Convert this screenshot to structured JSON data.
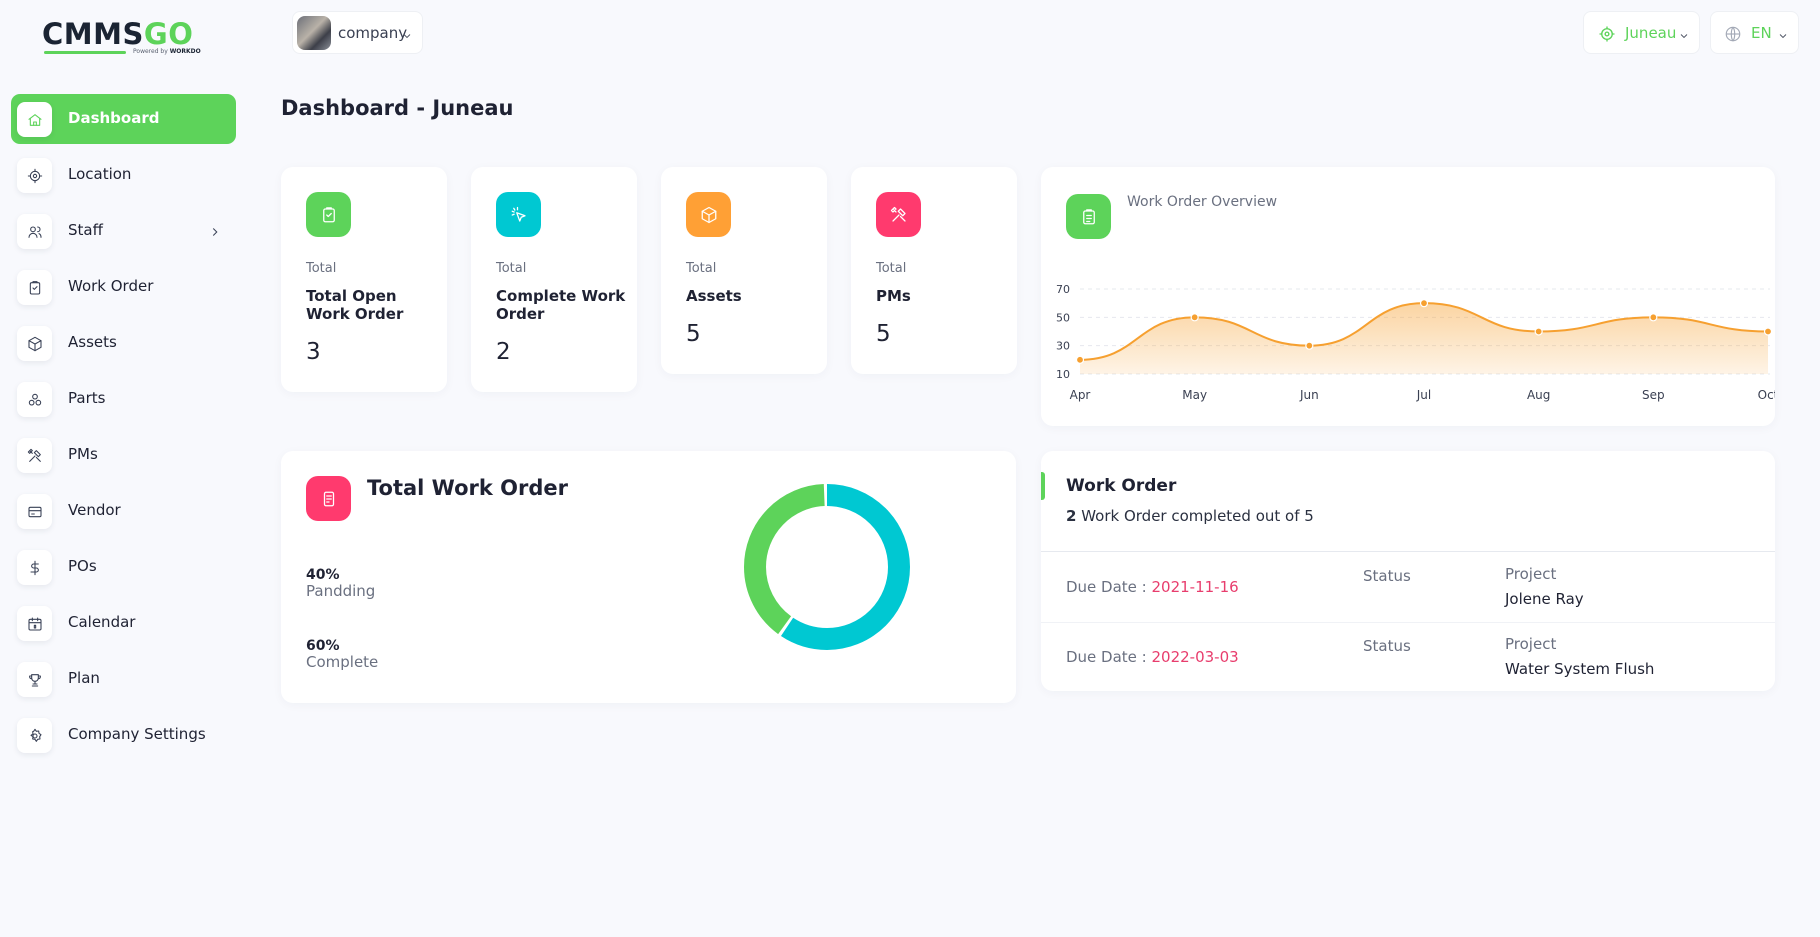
{
  "brand": {
    "logo_dark": "CMMS",
    "logo_green": "GO",
    "powered_prefix": "Powered by ",
    "powered_brand": "WORKDO"
  },
  "colors": {
    "accent": "#5dd35a",
    "teal": "#00c8d2",
    "orange": "#ffa035",
    "pink": "#ff3a6e",
    "chart_line": "#f6a030",
    "due_date": "#e83d6d"
  },
  "sidebar": {
    "items": [
      {
        "label": "Dashboard",
        "icon": "home-icon",
        "active": true
      },
      {
        "label": "Location",
        "icon": "target-icon"
      },
      {
        "label": "Staff",
        "icon": "users-icon",
        "has_submenu": true
      },
      {
        "label": "Work Order",
        "icon": "clipboard-icon"
      },
      {
        "label": "Assets",
        "icon": "box-icon"
      },
      {
        "label": "Parts",
        "icon": "components-icon"
      },
      {
        "label": "PMs",
        "icon": "tools-icon"
      },
      {
        "label": "Vendor",
        "icon": "card-icon"
      },
      {
        "label": "POs",
        "icon": "dollar-icon"
      },
      {
        "label": "Calendar",
        "icon": "calendar-icon"
      },
      {
        "label": "Plan",
        "icon": "trophy-icon"
      },
      {
        "label": "Company Settings",
        "icon": "settings-icon"
      }
    ]
  },
  "header": {
    "company_label": "company",
    "location_label": "Juneau",
    "language_label": "EN"
  },
  "page": {
    "title": "Dashboard - Juneau"
  },
  "stats": [
    {
      "kicker": "Total",
      "title": "Total Open Work Order",
      "value": "3",
      "icon": "clipboard-check-icon"
    },
    {
      "kicker": "Total",
      "title": "Complete Work Order",
      "value": "2",
      "icon": "pointer-click-icon"
    },
    {
      "kicker": "Total",
      "title": "Assets",
      "value": "5",
      "icon": "box-icon"
    },
    {
      "kicker": "Total",
      "title": "PMs",
      "value": "5",
      "icon": "tools-icon"
    }
  ],
  "overview": {
    "title": "Work Order Overview"
  },
  "chart_data": {
    "type": "area",
    "title": "Work Order Overview",
    "categories": [
      "Apr",
      "May",
      "Jun",
      "Jul",
      "Aug",
      "Sep",
      "Oct"
    ],
    "series": [
      {
        "values": [
          20,
          50,
          30,
          60,
          40,
          50,
          40
        ]
      }
    ],
    "y_ticks": [
      10,
      30,
      50,
      70
    ],
    "ylim": [
      10,
      70
    ],
    "grid": true,
    "legend": false
  },
  "total_work_order": {
    "title": "Total Work Order",
    "items": [
      {
        "percent": "40%",
        "label": "Pandding",
        "value": 40,
        "color": "#5dd35a"
      },
      {
        "percent": "60%",
        "label": "Complete",
        "value": 60,
        "color": "#00c8d2"
      }
    ]
  },
  "work_order_panel": {
    "title": "Work Order",
    "completed": "2",
    "summary_rest": " Work Order completed out of 5",
    "due_prefix": "Due Date : ",
    "status_label": "Status",
    "project_label": "Project",
    "rows": [
      {
        "due": "2021-11-16",
        "project": "Jolene Ray"
      },
      {
        "due": "2022-03-03",
        "project": "Water System Flush"
      }
    ]
  }
}
